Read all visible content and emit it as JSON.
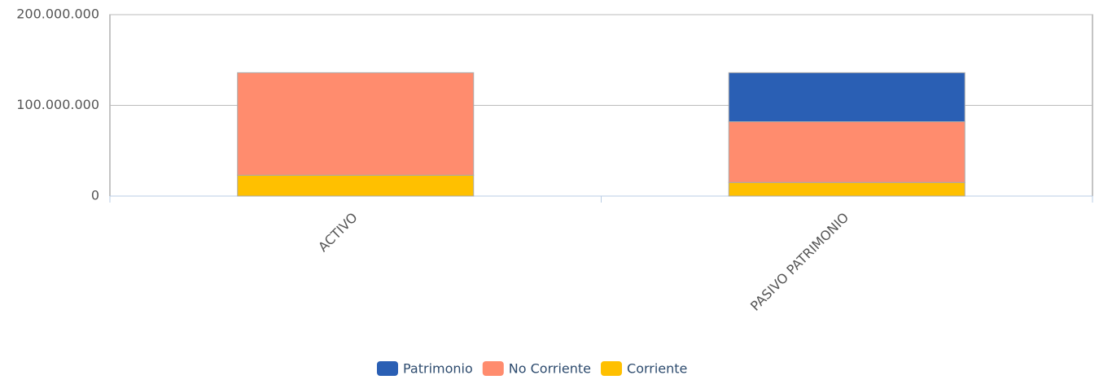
{
  "chart_data": {
    "type": "stacked_bar",
    "categories": [
      "ACTIVO",
      "PASIVO PATRIMONIO"
    ],
    "series": [
      {
        "name": "Corriente",
        "color": "#ffc000",
        "values": [
          23000000,
          15000000
        ]
      },
      {
        "name": "No Corriente",
        "color": "#ff8c6e",
        "values": [
          113000000,
          67000000
        ]
      },
      {
        "name": "Patrimonio",
        "color": "#2a5fb4",
        "values": [
          0,
          54000000
        ]
      }
    ],
    "ylim": [
      0,
      200000000
    ],
    "yticks": [
      0,
      {
        "value": 100000000,
        "label": "100.000.000"
      },
      {
        "value": 200000000,
        "label": "200.000.000"
      }
    ],
    "grid": true,
    "legend": "bottom"
  }
}
